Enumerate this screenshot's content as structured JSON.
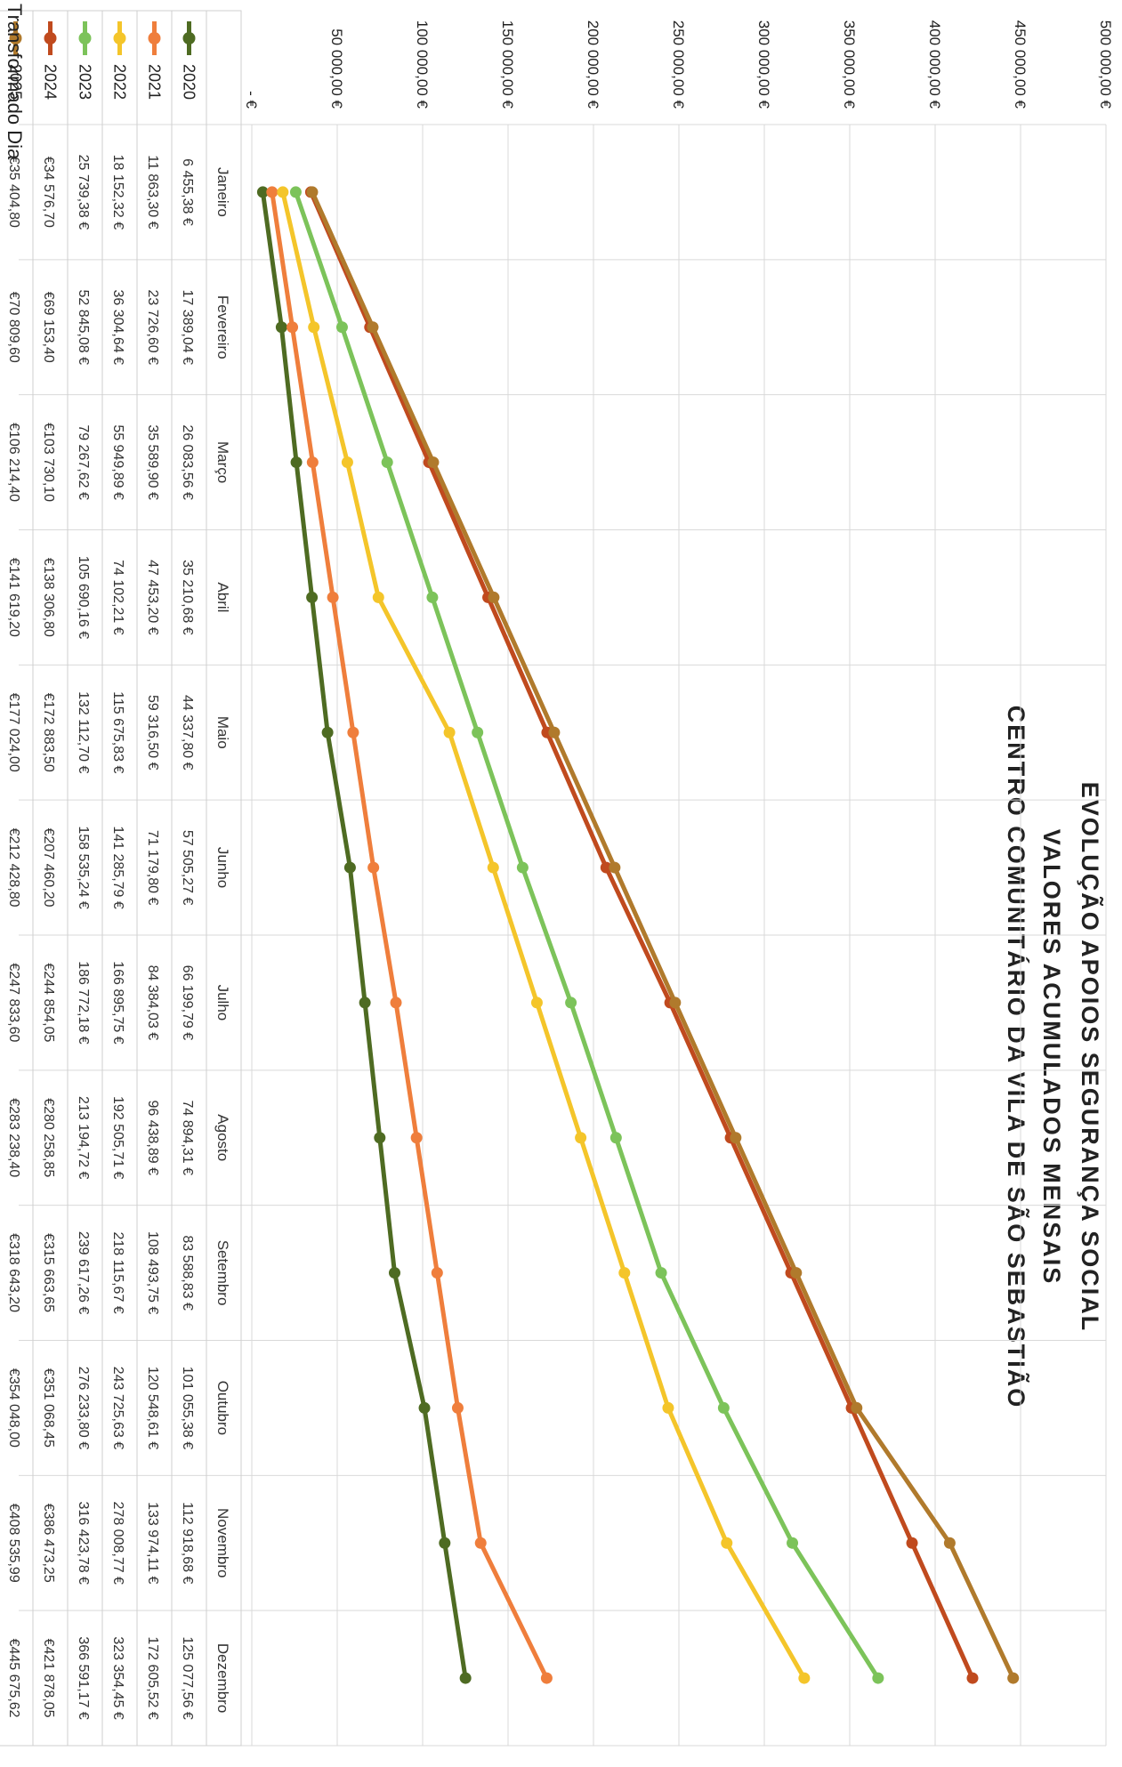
{
  "chart_data": {
    "type": "line",
    "title_lines": [
      "EVOLUÇÃO APOIOS SEGURANÇA SOCIAL",
      "VALORES ACUMULADOS MENSAIS",
      "CENTRO COMUNITÁRIO DA VILA DE SÃO SEBASTIÃO"
    ],
    "xlabel": "",
    "ylabel": "",
    "ylim": [
      0,
      500000
    ],
    "y_ticks": [
      "- €",
      "50 000,00 €",
      "100 000,00 €",
      "150 000,00 €",
      "200 000,00 €",
      "250 000,00 €",
      "300 000,00 €",
      "350 000,00 €",
      "400 000,00 €",
      "450 000,00 €",
      "500 000,00 €"
    ],
    "categories": [
      "Janeiro",
      "Fevereiro",
      "Março",
      "Abril",
      "Maio",
      "Junho",
      "Julho",
      "Agosto",
      "Setembro",
      "Outubro",
      "Novembro",
      "Dezembro"
    ],
    "grid": true,
    "legend_position": "table-left",
    "series": [
      {
        "name": "2020",
        "color": "#4e6b22",
        "values": [
          6455.38,
          17389.04,
          26083.56,
          35210.68,
          44337.8,
          57505.27,
          66199.79,
          74894.31,
          83588.83,
          101055.38,
          112918.68,
          125077.56
        ],
        "labels": [
          "6 455,38 €",
          "17 389,04 €",
          "26 083,56 €",
          "35 210,68 €",
          "44 337,80 €",
          "57 505,27 €",
          "66 199,79 €",
          "74 894,31 €",
          "83 588,83 €",
          "101 055,38 €",
          "112 918,68 €",
          "125 077,56 €"
        ]
      },
      {
        "name": "2021",
        "color": "#ef7e3c",
        "values": [
          11863.3,
          23726.6,
          35589.9,
          47453.2,
          59316.5,
          71179.8,
          84384.03,
          96438.89,
          108493.75,
          120548.61,
          133974.11,
          172605.52
        ],
        "labels": [
          "11 863,30 €",
          "23 726,60 €",
          "35 589,90 €",
          "47 453,20 €",
          "59 316,50 €",
          "71 179,80 €",
          "84 384,03 €",
          "96 438,89 €",
          "108 493,75 €",
          "120 548,61 €",
          "133 974,11 €",
          "172 605,52 €"
        ]
      },
      {
        "name": "2022",
        "color": "#f4c52a",
        "values": [
          18152.32,
          36304.64,
          55949.89,
          74102.21,
          115675.83,
          141285.79,
          166895.75,
          192505.71,
          218115.67,
          243725.63,
          278008.77,
          323354.45
        ],
        "labels": [
          "18 152,32 €",
          "36 304,64 €",
          "55 949,89 €",
          "74 102,21 €",
          "115 675,83 €",
          "141 285,79 €",
          "166 895,75 €",
          "192 505,71 €",
          "218 115,67 €",
          "243 725,63 €",
          "278 008,77 €",
          "323 354,45 €"
        ]
      },
      {
        "name": "2023",
        "color": "#7cc35a",
        "values": [
          25739.38,
          52845.08,
          79267.62,
          105690.16,
          132112.7,
          158535.24,
          186772.18,
          213194.72,
          239617.26,
          276233.8,
          316423.78,
          366591.17
        ],
        "labels": [
          "25 739,38 €",
          "52 845,08 €",
          "79 267,62 €",
          "105 690,16 €",
          "132 112,70 €",
          "158 535,24 €",
          "186 772,18 €",
          "213 194,72 €",
          "239 617,26 €",
          "276 233,80 €",
          "316 423,78 €",
          "366 591,17 €"
        ]
      },
      {
        "name": "2024",
        "color": "#c04a1e",
        "values": [
          34576.7,
          69153.4,
          103730.1,
          138306.8,
          172883.5,
          207460.2,
          244854.05,
          280258.85,
          315663.65,
          351068.45,
          386473.25,
          421878.05
        ],
        "labels": [
          "€34 576,70",
          "€69 153,40",
          "€103 730,10",
          "€138 306,80",
          "€172 883,50",
          "€207 460,20",
          "€244 854,05",
          "€280 258,85",
          "€315 663,65",
          "€351 068,45",
          "€386 473,25",
          "€421 878,05"
        ]
      },
      {
        "name": "2025",
        "color": "#b07a2c",
        "values": [
          35404.8,
          70809.6,
          106214.4,
          141619.2,
          177024.0,
          212428.8,
          247833.6,
          283238.4,
          318643.2,
          354048.0,
          408535.99,
          445675.62
        ],
        "labels": [
          "€35 404,80",
          "€70 809,60",
          "€106 214,40",
          "€141 619,20",
          "€177 024,00",
          "€212 428,80",
          "€247 833,60",
          "€283 238,40",
          "€318 643,20",
          "€354 048,00",
          "€408 535,99",
          "€445 675,62"
        ]
      }
    ]
  },
  "footer": {
    "text": "Transformado Dia"
  }
}
